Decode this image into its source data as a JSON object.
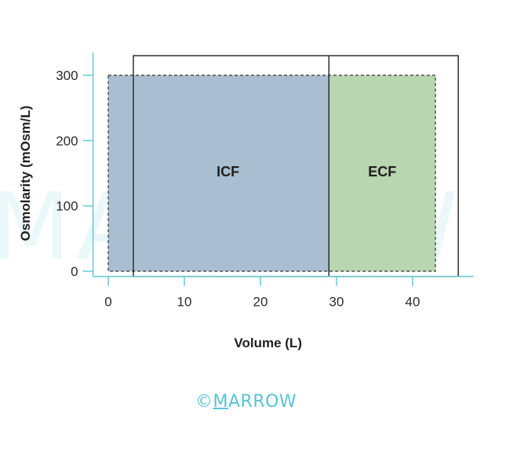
{
  "watermark": "MARROW",
  "footer": {
    "copyright": "©",
    "brand_first": "M",
    "brand_rest": "ARROW"
  },
  "colors": {
    "axis": "#63c9d5",
    "icf_fill": "#a9bfd1",
    "ecf_fill": "#b8d6b0",
    "outline": "#222222"
  },
  "chart_data": {
    "type": "area",
    "xlabel": "Volume (L)",
    "ylabel": "Osmolarity (mOsm/L)",
    "xlim": [
      -2,
      48
    ],
    "ylim": [
      -8,
      335
    ],
    "x_ticks": [
      0,
      10,
      20,
      30,
      40
    ],
    "y_ticks": [
      0,
      100,
      200,
      300
    ],
    "regions": [
      {
        "label": "ICF",
        "x_start": 0,
        "x_end": 29,
        "osmolarity": 300
      },
      {
        "label": "ECF",
        "x_start": 29,
        "x_end": 43,
        "osmolarity": 300
      }
    ],
    "baseline_dashed": {
      "x_start": 0,
      "x_end": 43,
      "y_bottom": 0,
      "y_top": 300
    },
    "new_state_solid": {
      "x_start": 3.3,
      "x_end": 46,
      "divider_x": 29,
      "y_bottom": -8,
      "y_top": 330
    }
  }
}
